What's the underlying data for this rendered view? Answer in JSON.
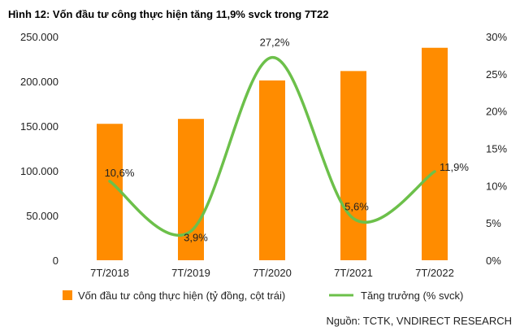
{
  "chart_data": {
    "type": "bar",
    "title": "Hình 12: Vốn đầu tư công thực hiện tăng 11,9% svck trong 7T22",
    "categories": [
      "7T/2018",
      "7T/2019",
      "7T/2020",
      "7T/2021",
      "7T/2022"
    ],
    "series": [
      {
        "name": "Vốn đầu tư công thực hiện (tỷ đồng, cột trái)",
        "type": "bar",
        "axis": "left",
        "color": "#FF8C00",
        "values": [
          152500,
          158000,
          201000,
          211500,
          237500
        ]
      },
      {
        "name": "Tăng trưởng (% svck)",
        "type": "line",
        "axis": "right",
        "color": "#6CC04A",
        "values": [
          10.6,
          3.9,
          27.2,
          5.6,
          11.9
        ],
        "labels": [
          "10,6%",
          "3,9%",
          "27,2%",
          "5,6%",
          "11,9%"
        ]
      }
    ],
    "y_left": {
      "ylim": [
        0,
        250000
      ],
      "ticks": [
        0,
        50000,
        100000,
        150000,
        200000,
        250000
      ],
      "tick_labels": [
        "0",
        "50.000",
        "100.000",
        "150.000",
        "200.000",
        "250.000"
      ]
    },
    "y_right": {
      "ylim": [
        0,
        30
      ],
      "ticks": [
        0,
        5,
        10,
        15,
        20,
        25,
        30
      ],
      "tick_labels": [
        "0%",
        "5%",
        "10%",
        "15%",
        "20%",
        "25%",
        "30%"
      ]
    },
    "grid": false,
    "legend": "bottom",
    "source": "Nguồn: TCTK, VNDIRECT RESEARCH"
  }
}
